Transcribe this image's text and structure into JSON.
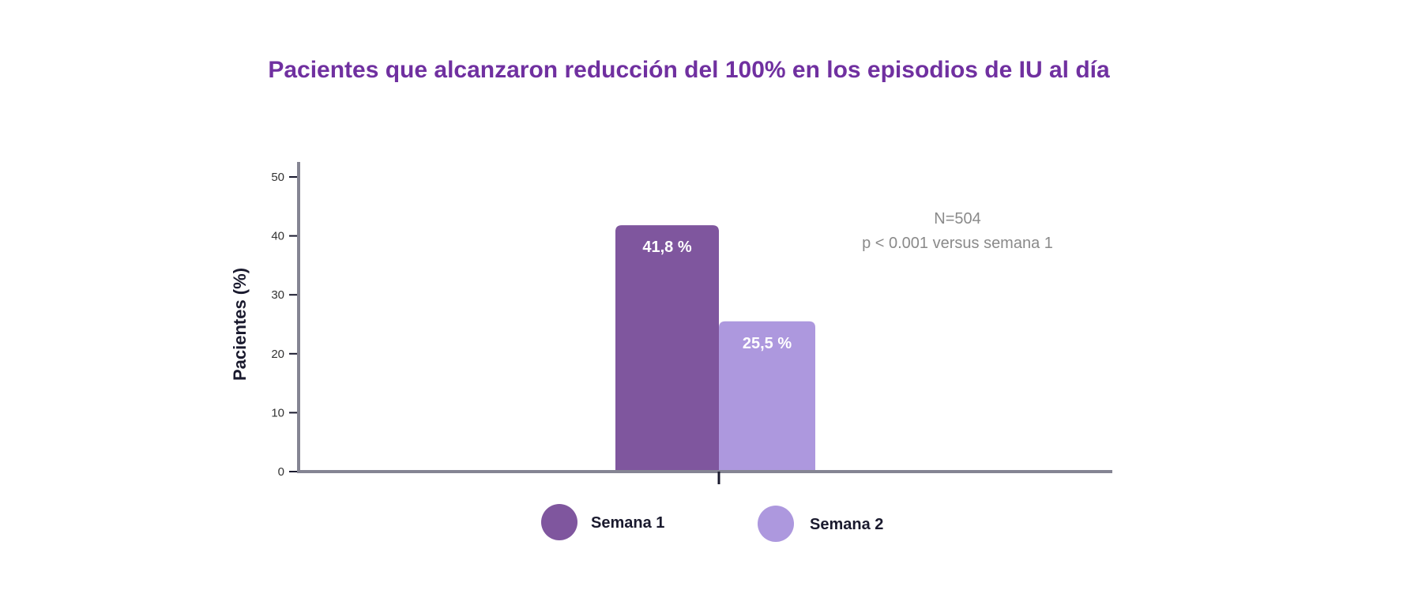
{
  "chart_data": {
    "type": "bar",
    "title": "Pacientes que alcanzaron reducción del 100% en los episodios de IU al día",
    "ylabel": "Pacientes (%)",
    "xlabel": "",
    "ylim": [
      0,
      50
    ],
    "yticks": [
      0,
      10,
      20,
      30,
      40,
      50
    ],
    "categories": [
      ""
    ],
    "series": [
      {
        "name": "Semana 1",
        "values": [
          41.8
        ],
        "label": "41,8 %",
        "color": "#7f569e"
      },
      {
        "name": "Semana 2",
        "values": [
          25.5
        ],
        "label": "25,5 %",
        "color": "#ad98de"
      }
    ],
    "annotations": [
      "N=504",
      "p < 0.001 versus semana 1"
    ],
    "legend_position": "bottom",
    "grid": false,
    "axis_color": "#858593",
    "tick_color": "#1a1a2e"
  }
}
